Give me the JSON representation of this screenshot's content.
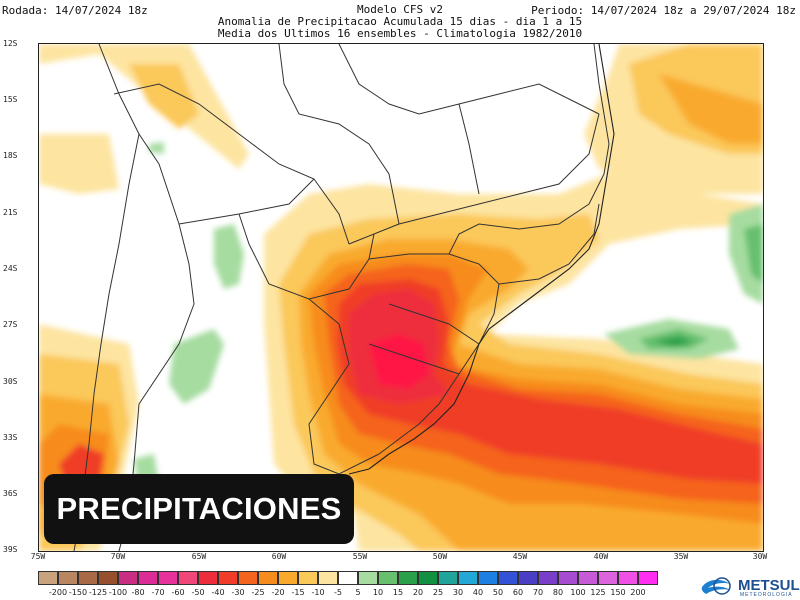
{
  "header": {
    "left": "Rodada: 14/07/2024 18z",
    "right": "Periodo: 14/07/2024 18z a 29/07/2024 18z",
    "title_lines": [
      "Modelo CFS v2",
      "Anomalia de Precipitacao Acumulada 15 dias - dia 1 a 15",
      "Media dos Ultimos 16 ensembles - Climatologia 1982/2010"
    ]
  },
  "map": {
    "lat_labels": [
      "12S",
      "15S",
      "18S",
      "21S",
      "24S",
      "27S",
      "30S",
      "33S",
      "36S",
      "39S"
    ],
    "lon_labels": [
      "75W",
      "70W",
      "65W",
      "60W",
      "55W",
      "50W",
      "45W",
      "40W",
      "35W",
      "30W"
    ]
  },
  "overlay": {
    "text": "PRECIPITACIONES"
  },
  "legend": {
    "labels": [
      "-200",
      "-150",
      "-125",
      "-100",
      "-80",
      "-70",
      "-60",
      "-50",
      "-40",
      "-30",
      "-25",
      "-20",
      "-15",
      "-10",
      "-5",
      "5",
      "10",
      "15",
      "20",
      "25",
      "30",
      "40",
      "50",
      "60",
      "70",
      "80",
      "100",
      "125",
      "150",
      "200"
    ],
    "colors": [
      "#c9a27e",
      "#b88660",
      "#a86a46",
      "#96502e",
      "#c82e82",
      "#dc2d96",
      "#e8329b",
      "#f04678",
      "#ee2d3c",
      "#f03c28",
      "#f5641e",
      "#f78c1e",
      "#f9aa2d",
      "#fbc85a",
      "#fde4a0",
      "#ffffff",
      "#a6dca0",
      "#66c06e",
      "#2aa04b",
      "#139041",
      "#20a49a",
      "#21a8d6",
      "#1e7fe2",
      "#3352d6",
      "#4a3fc4",
      "#7a3fc8",
      "#a64cd0",
      "#c75ad6",
      "#dc64dc",
      "#f050e6",
      "#ff2ef0"
    ]
  },
  "logo": {
    "name": "METSUL",
    "sub": "METEOROLOGIA"
  },
  "colors": {
    "deep_red": "#ff1744",
    "red": "#ee2d3c",
    "orange": "#f78c1e",
    "light_orange": "#fbc85a",
    "cream": "#fde4a0",
    "green": "#66c06e",
    "dark_green": "#139041"
  }
}
